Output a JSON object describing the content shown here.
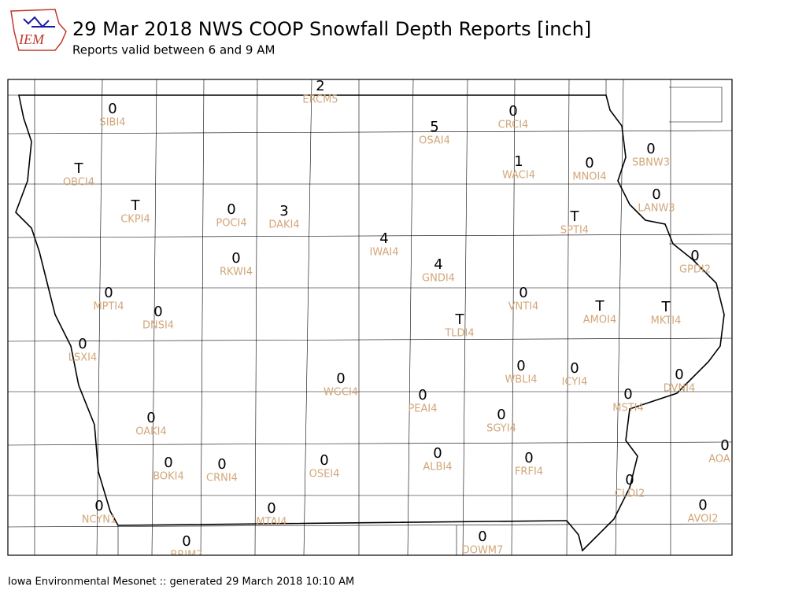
{
  "header": {
    "logo": "IEM",
    "title": "29 Mar 2018 NWS COOP Snowfall Depth Reports [inch]",
    "subtitle": "Reports valid between 6 and 9 AM"
  },
  "stations": [
    {
      "report": "2",
      "id": "ERCM5"
    },
    {
      "report": "0",
      "id": "SIBI4"
    },
    {
      "report": "0",
      "id": "CRCI4"
    },
    {
      "report": "5",
      "id": "OSAI4"
    },
    {
      "report": "T",
      "id": "OBCI4"
    },
    {
      "report": "1",
      "id": "WACI4"
    },
    {
      "report": "0",
      "id": "MNOI4"
    },
    {
      "report": "0",
      "id": "SBNW3"
    },
    {
      "report": "0",
      "id": "LANW3"
    },
    {
      "report": "T",
      "id": "CKPI4"
    },
    {
      "report": "0",
      "id": "POCI4"
    },
    {
      "report": "3",
      "id": "DAKI4"
    },
    {
      "report": "T",
      "id": "SPTI4"
    },
    {
      "report": "4",
      "id": "IWAI4"
    },
    {
      "report": "0",
      "id": "GPDI2"
    },
    {
      "report": "0",
      "id": "RKWI4"
    },
    {
      "report": "4",
      "id": "GNDI4"
    },
    {
      "report": "0",
      "id": "MPTI4"
    },
    {
      "report": "0",
      "id": "DNSI4"
    },
    {
      "report": "0",
      "id": "VNTI4"
    },
    {
      "report": "T",
      "id": "AMOI4"
    },
    {
      "report": "T",
      "id": "MKTI4"
    },
    {
      "report": "T",
      "id": "TLDI4"
    },
    {
      "report": "0",
      "id": "LSXI4"
    },
    {
      "report": "0",
      "id": "WBLI4"
    },
    {
      "report": "0",
      "id": "ICYI4"
    },
    {
      "report": "0",
      "id": "DVNI4"
    },
    {
      "report": "0",
      "id": "WGCI4"
    },
    {
      "report": "0",
      "id": "PEAI4"
    },
    {
      "report": "0",
      "id": "MSTI4"
    },
    {
      "report": "0",
      "id": "OAKI4"
    },
    {
      "report": "0",
      "id": "SGYI4"
    },
    {
      "report": "0",
      "id": "AOA"
    },
    {
      "report": "0",
      "id": "ALBI4"
    },
    {
      "report": "0",
      "id": "FRFI4"
    },
    {
      "report": "0",
      "id": "BOKI4"
    },
    {
      "report": "0",
      "id": "CRNI4"
    },
    {
      "report": "0",
      "id": "OSEI4"
    },
    {
      "report": "0",
      "id": "CLDI2"
    },
    {
      "report": "0",
      "id": "NCYN1"
    },
    {
      "report": "0",
      "id": "AVOI2"
    },
    {
      "report": "0",
      "id": "MTAI4"
    },
    {
      "report": "0",
      "id": "DOWM7"
    },
    {
      "report": "0",
      "id": "BRIM7"
    }
  ],
  "footer": "Iowa Environmental Mesonet :: generated 29 March 2018 10:10 AM"
}
